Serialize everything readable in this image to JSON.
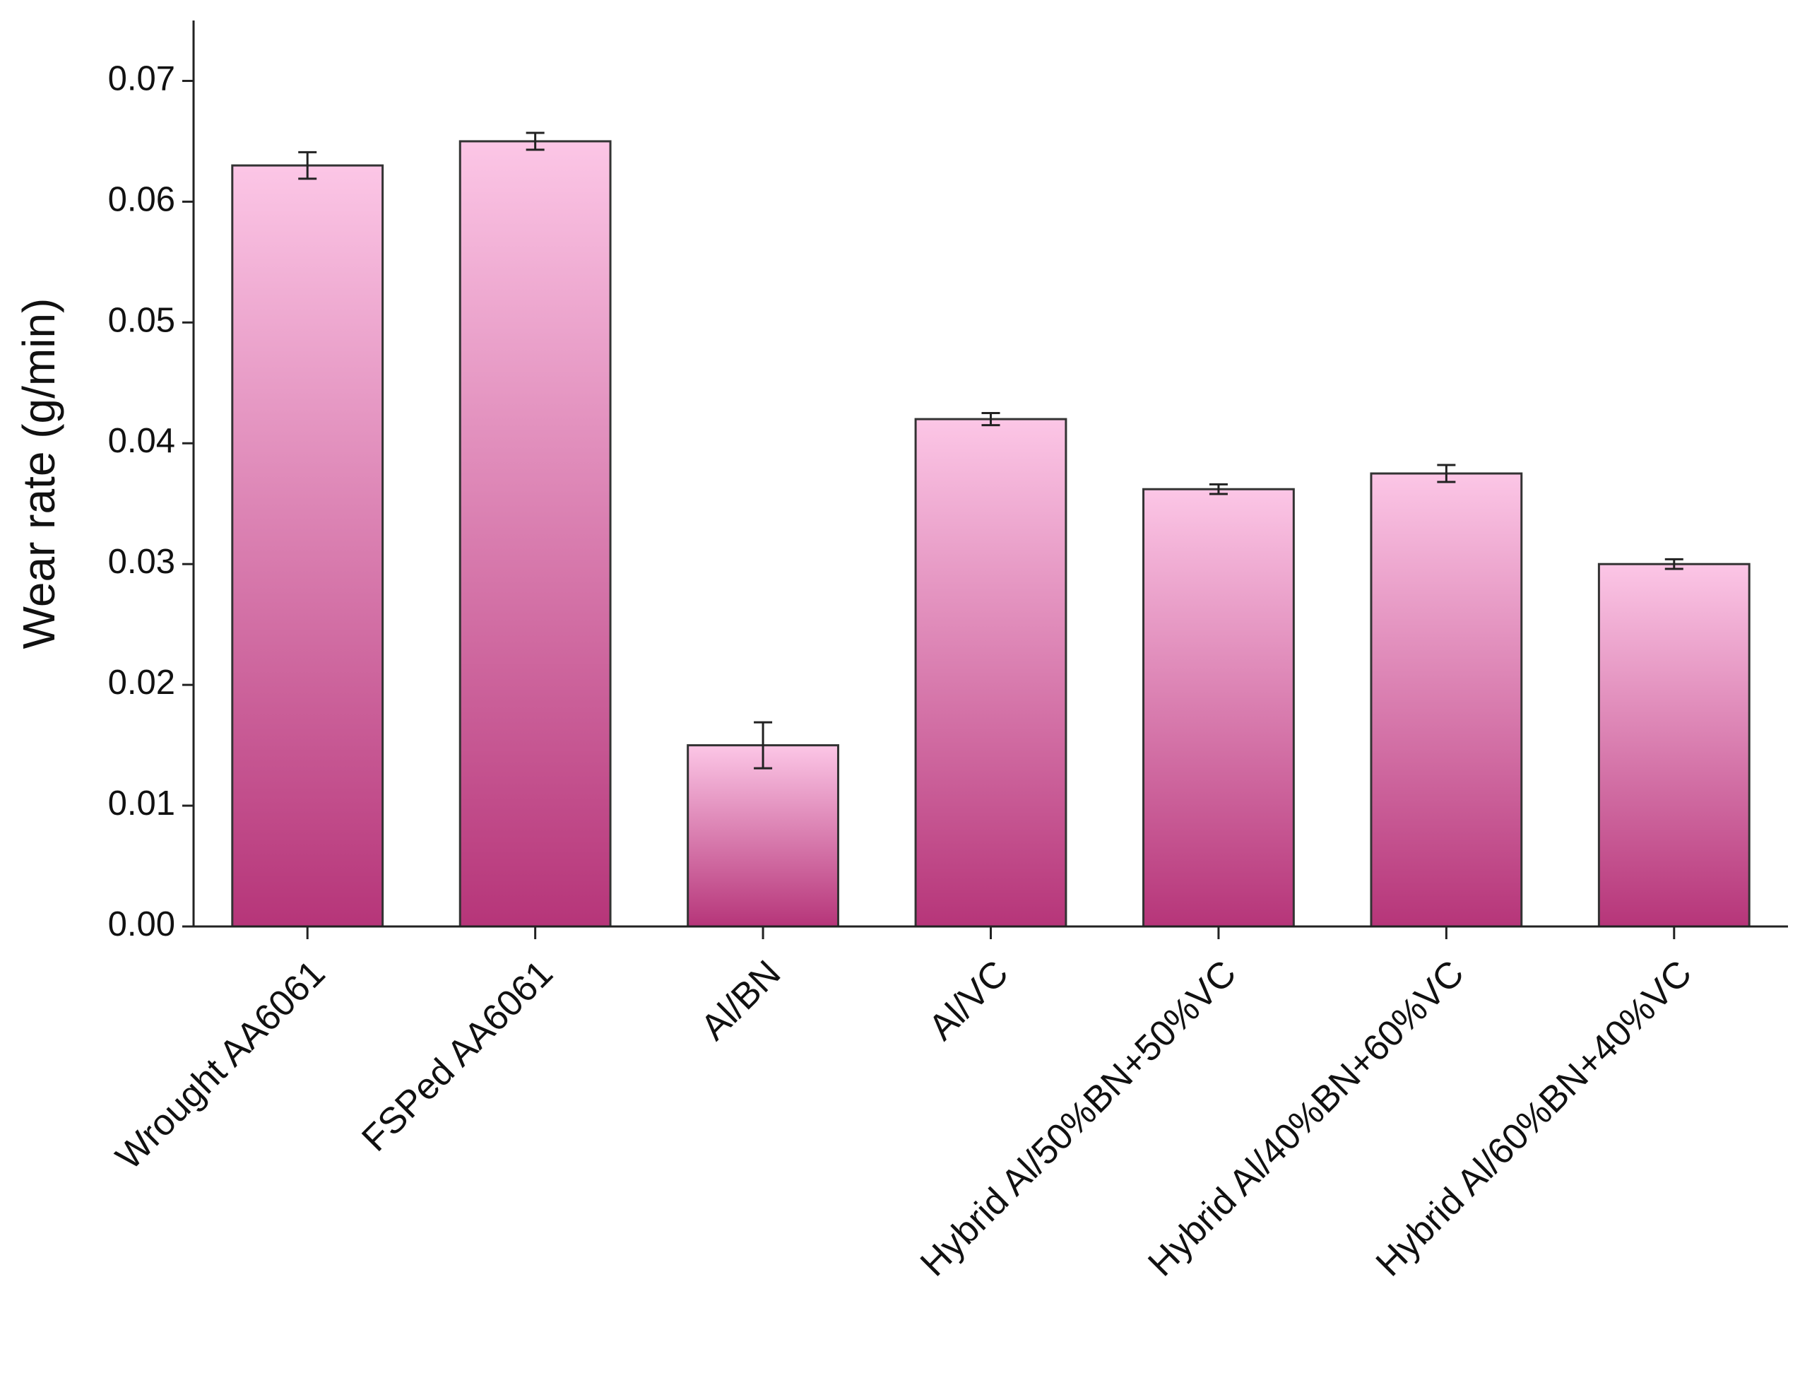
{
  "chart_data": {
    "type": "bar",
    "y_label": "Wear rate (g/min)",
    "categories": [
      "Wrought AA6061",
      "FSPed AA6061",
      "Al/BN",
      "Al/VC",
      "Hybrid Al/50%BN+50%VC",
      "Hybrid Al/40%BN+60%VC",
      "Hybrid Al/60%BN+40%VC"
    ],
    "values": [
      0.063,
      0.065,
      0.015,
      0.042,
      0.0362,
      0.0375,
      0.03
    ],
    "errors": [
      0.0011,
      0.0007,
      0.0019,
      0.0005,
      0.0004,
      0.0007,
      0.0004
    ],
    "gradient": [
      "#fcc6e6",
      "#b63579"
    ],
    "ylim": [
      0,
      0.075
    ],
    "yticks": [
      {
        "value": 0,
        "label": "0.00"
      },
      0.01,
      0.02,
      0.03,
      0.04,
      0.05,
      0.06,
      0.07
    ]
  }
}
